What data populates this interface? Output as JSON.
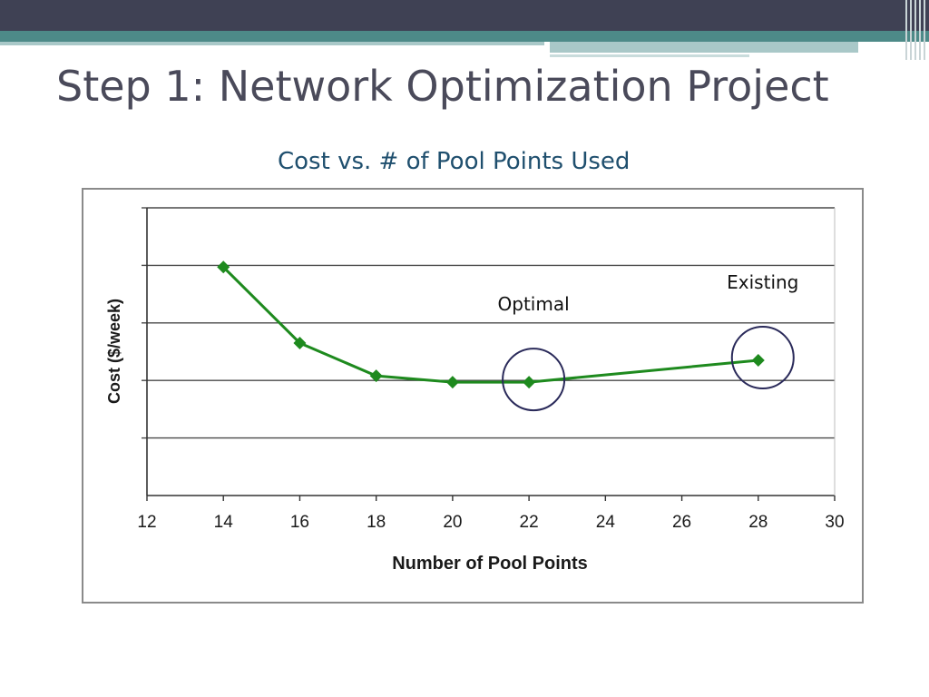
{
  "slide": {
    "title": "Step 1: Network Optimization Project"
  },
  "colors": {
    "top_bar": "#3f4154",
    "accent_teal": "#4d8a88",
    "series": "#1e8a1e",
    "circle": "#2a2a5a",
    "title_text": "#4a4a5a",
    "chart_title_text": "#1f4f6e"
  },
  "chart_data": {
    "type": "line",
    "title": "Cost vs. # of Pool Points Used",
    "xlabel": "Number of Pool Points",
    "ylabel": "Cost ($/week)",
    "xlim": [
      12,
      30
    ],
    "xticks": [
      12,
      14,
      16,
      18,
      20,
      22,
      24,
      26,
      28,
      30
    ],
    "ylim": [
      0,
      5
    ],
    "y_gridlines": [
      1,
      2,
      3,
      4,
      5
    ],
    "y_tick_labels_shown": false,
    "grid": true,
    "series": [
      {
        "name": "Cost",
        "x": [
          14,
          16,
          18,
          20,
          22,
          28
        ],
        "y": [
          3.97,
          2.65,
          2.08,
          1.97,
          1.97,
          2.35
        ],
        "marker": "diamond"
      }
    ],
    "annotations": [
      {
        "label": "Optimal",
        "x": 22,
        "y": 1.97,
        "circled": true
      },
      {
        "label": "Existing",
        "x": 28,
        "y": 2.35,
        "circled": true
      }
    ]
  }
}
